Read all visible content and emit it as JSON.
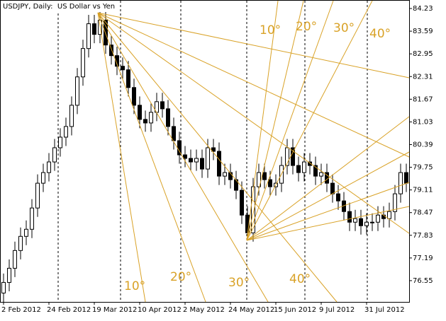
{
  "chart_data": {
    "type": "candlestick",
    "title": "USDJPY, Daily:  US Dollar vs Yen",
    "annotations": [
      "10°",
      "20°",
      "30°",
      "40°",
      "10°",
      "20°",
      "30°",
      "40°"
    ],
    "categories": [
      "2 Feb 2012",
      null,
      null,
      null,
      null,
      null,
      null,
      null,
      "24 Feb 2012",
      null,
      null,
      null,
      null,
      null,
      null,
      null,
      "19 Mar 2012",
      null,
      null,
      null,
      null,
      null,
      null,
      null,
      "10 Apr 2012",
      null,
      null,
      null,
      null,
      null,
      null,
      null,
      "2 May 2012",
      null,
      null,
      null,
      null,
      null,
      null,
      null,
      "24 May 2012",
      null,
      null,
      null,
      null,
      null,
      null,
      null,
      "15 Jun 2012",
      null,
      null,
      null,
      null,
      null,
      null,
      null,
      "9 Jul 2012",
      null,
      null,
      null,
      null,
      null,
      null,
      null,
      "31 Jul 2012",
      null,
      null,
      null,
      null,
      null,
      null,
      null
    ],
    "open": [
      76.2,
      76.5,
      76.9,
      77.4,
      77.8,
      78.0,
      78.6,
      79.3,
      79.6,
      79.9,
      80.3,
      80.6,
      80.9,
      81.5,
      82.3,
      83.1,
      83.8,
      83.5,
      83.9,
      83.2,
      82.9,
      82.6,
      82.5,
      82.0,
      81.5,
      81.1,
      81.0,
      81.3,
      81.6,
      81.4,
      80.9,
      80.5,
      80.1,
      80.0,
      79.9,
      80.0,
      79.7,
      80.3,
      80.2,
      79.5,
      79.6,
      79.4,
      79.1,
      78.4,
      77.9,
      79.2,
      79.6,
      79.4,
      79.2,
      79.3,
      79.8,
      80.3,
      79.8,
      79.6,
      79.9,
      79.8,
      79.5,
      79.6,
      79.3,
      79.0,
      78.8,
      78.5,
      78.2,
      78.3,
      78.1,
      78.2,
      78.2,
      78.4,
      78.3,
      78.5,
      79.0,
      79.6
    ],
    "high": [
      76.75,
      77.15,
      77.65,
      78.05,
      78.25,
      78.85,
      79.55,
      79.85,
      80.15,
      80.55,
      80.85,
      81.15,
      81.75,
      82.55,
      83.35,
      84.05,
      84.05,
      84.2,
      84.15,
      83.45,
      83.15,
      82.85,
      82.75,
      82.25,
      81.75,
      81.35,
      81.55,
      81.85,
      81.85,
      81.65,
      81.15,
      80.75,
      80.35,
      80.25,
      80.25,
      80.25,
      80.55,
      80.55,
      80.45,
      79.85,
      79.85,
      79.65,
      79.35,
      78.65,
      79.45,
      79.85,
      79.85,
      79.65,
      79.55,
      80.05,
      80.55,
      80.55,
      80.05,
      80.15,
      80.15,
      80.05,
      79.85,
      79.85,
      79.55,
      79.25,
      79.05,
      78.75,
      78.55,
      78.55,
      78.45,
      78.45,
      78.65,
      78.65,
      78.75,
      79.25,
      79.85,
      79.85
    ],
    "low": [
      75.95,
      76.25,
      76.65,
      77.15,
      77.55,
      77.75,
      78.35,
      79.05,
      79.35,
      79.65,
      80.05,
      80.35,
      80.65,
      81.25,
      82.05,
      82.85,
      83.25,
      83.25,
      82.95,
      82.65,
      82.35,
      82.25,
      81.75,
      81.25,
      80.85,
      80.75,
      80.75,
      81.05,
      81.15,
      80.65,
      80.25,
      79.85,
      79.75,
      79.65,
      79.65,
      79.45,
      79.45,
      79.95,
      79.25,
      79.25,
      79.15,
      78.85,
      78.15,
      77.75,
      77.65,
      78.95,
      79.15,
      78.95,
      78.95,
      79.05,
      79.55,
      79.55,
      79.35,
      79.35,
      79.55,
      79.25,
      79.25,
      79.05,
      78.75,
      78.55,
      78.25,
      77.95,
      77.95,
      77.85,
      77.85,
      77.95,
      77.95,
      78.05,
      78.05,
      78.25,
      78.75,
      79.05
    ],
    "close": [
      76.5,
      76.9,
      77.4,
      77.8,
      78.0,
      78.6,
      79.3,
      79.6,
      79.9,
      80.3,
      80.6,
      80.9,
      81.5,
      82.3,
      83.1,
      83.8,
      83.5,
      83.9,
      83.2,
      82.9,
      82.6,
      82.5,
      82.0,
      81.5,
      81.1,
      81.0,
      81.3,
      81.6,
      81.4,
      80.9,
      80.5,
      80.1,
      80.0,
      79.9,
      80.0,
      79.7,
      80.3,
      80.2,
      79.5,
      79.6,
      79.4,
      79.1,
      78.4,
      77.9,
      79.2,
      79.6,
      79.4,
      79.2,
      79.3,
      79.8,
      80.3,
      79.8,
      79.6,
      79.9,
      79.8,
      79.5,
      79.6,
      79.3,
      79.0,
      78.8,
      78.5,
      78.2,
      78.3,
      78.1,
      78.2,
      78.2,
      78.4,
      78.3,
      78.5,
      79.0,
      79.6,
      79.3
    ],
    "up_color": "#ffffff",
    "down_color": "#000000",
    "outline_color": "#000000",
    "ylim": [
      75.95,
      84.47
    ],
    "yticks": [
      84.23,
      83.59,
      82.95,
      82.31,
      81.67,
      81.03,
      80.39,
      79.75,
      79.11,
      78.47,
      77.83,
      77.19,
      76.55
    ]
  }
}
